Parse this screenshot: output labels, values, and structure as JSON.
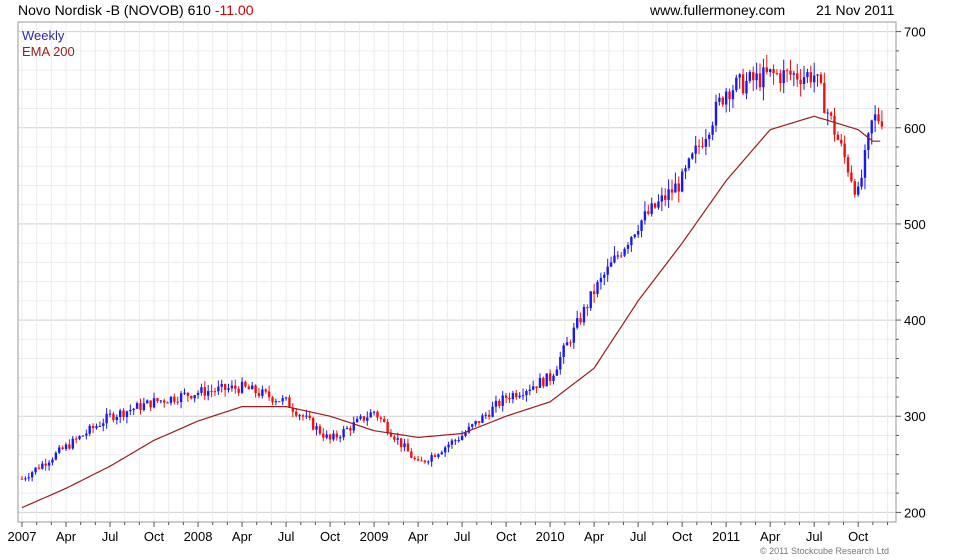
{
  "header": {
    "title": "Novo Nordisk -B (NOVOB) 610",
    "change": "-11.00",
    "site": "www.fullermoney.com",
    "date": "21 Nov 2011"
  },
  "legend": {
    "weekly": "Weekly",
    "ema": "EMA 200"
  },
  "copyright": "© 2011 Stockcube Research Ltd",
  "colors": {
    "up": "#1a1aee",
    "down": "#ee1111",
    "ema": "#9b1c1c",
    "grid": "#d9d9d9"
  },
  "chart_data": {
    "type": "line",
    "title": "Novo Nordisk -B (NOVOB) 610",
    "ylim": [
      190,
      710
    ],
    "yticks": [
      200,
      300,
      400,
      500,
      600,
      700
    ],
    "x_tick_labels": [
      "2007",
      "Apr",
      "Jul",
      "Oct",
      "2008",
      "Apr",
      "Jul",
      "Oct",
      "2009",
      "Apr",
      "Jul",
      "Oct",
      "2010",
      "Apr",
      "Jul",
      "Oct",
      "2011",
      "Apr",
      "Jul",
      "Oct"
    ],
    "series": [
      {
        "name": "Weekly",
        "x": [
          "2007-01",
          "2007-04",
          "2007-07",
          "2007-10",
          "2008-01",
          "2008-04",
          "2008-07",
          "2008-10",
          "2009-01",
          "2009-04",
          "2009-07",
          "2009-10",
          "2010-01",
          "2010-04",
          "2010-07",
          "2010-10",
          "2011-01",
          "2011-04",
          "2011-07",
          "2011-10",
          "2011-11"
        ],
        "values": [
          235,
          268,
          300,
          315,
          325,
          330,
          315,
          275,
          305,
          250,
          280,
          320,
          340,
          430,
          500,
          545,
          640,
          655,
          655,
          530,
          610
        ]
      },
      {
        "name": "EMA 200",
        "x": [
          "2007-01",
          "2007-04",
          "2007-07",
          "2007-10",
          "2008-01",
          "2008-04",
          "2008-07",
          "2008-10",
          "2009-01",
          "2009-04",
          "2009-07",
          "2009-10",
          "2010-01",
          "2010-04",
          "2010-07",
          "2010-10",
          "2011-01",
          "2011-04",
          "2011-07",
          "2011-10",
          "2011-11"
        ],
        "values": [
          205,
          225,
          248,
          275,
          295,
          310,
          310,
          300,
          285,
          278,
          282,
          300,
          315,
          350,
          420,
          480,
          545,
          598,
          612,
          598,
          586
        ]
      }
    ]
  }
}
